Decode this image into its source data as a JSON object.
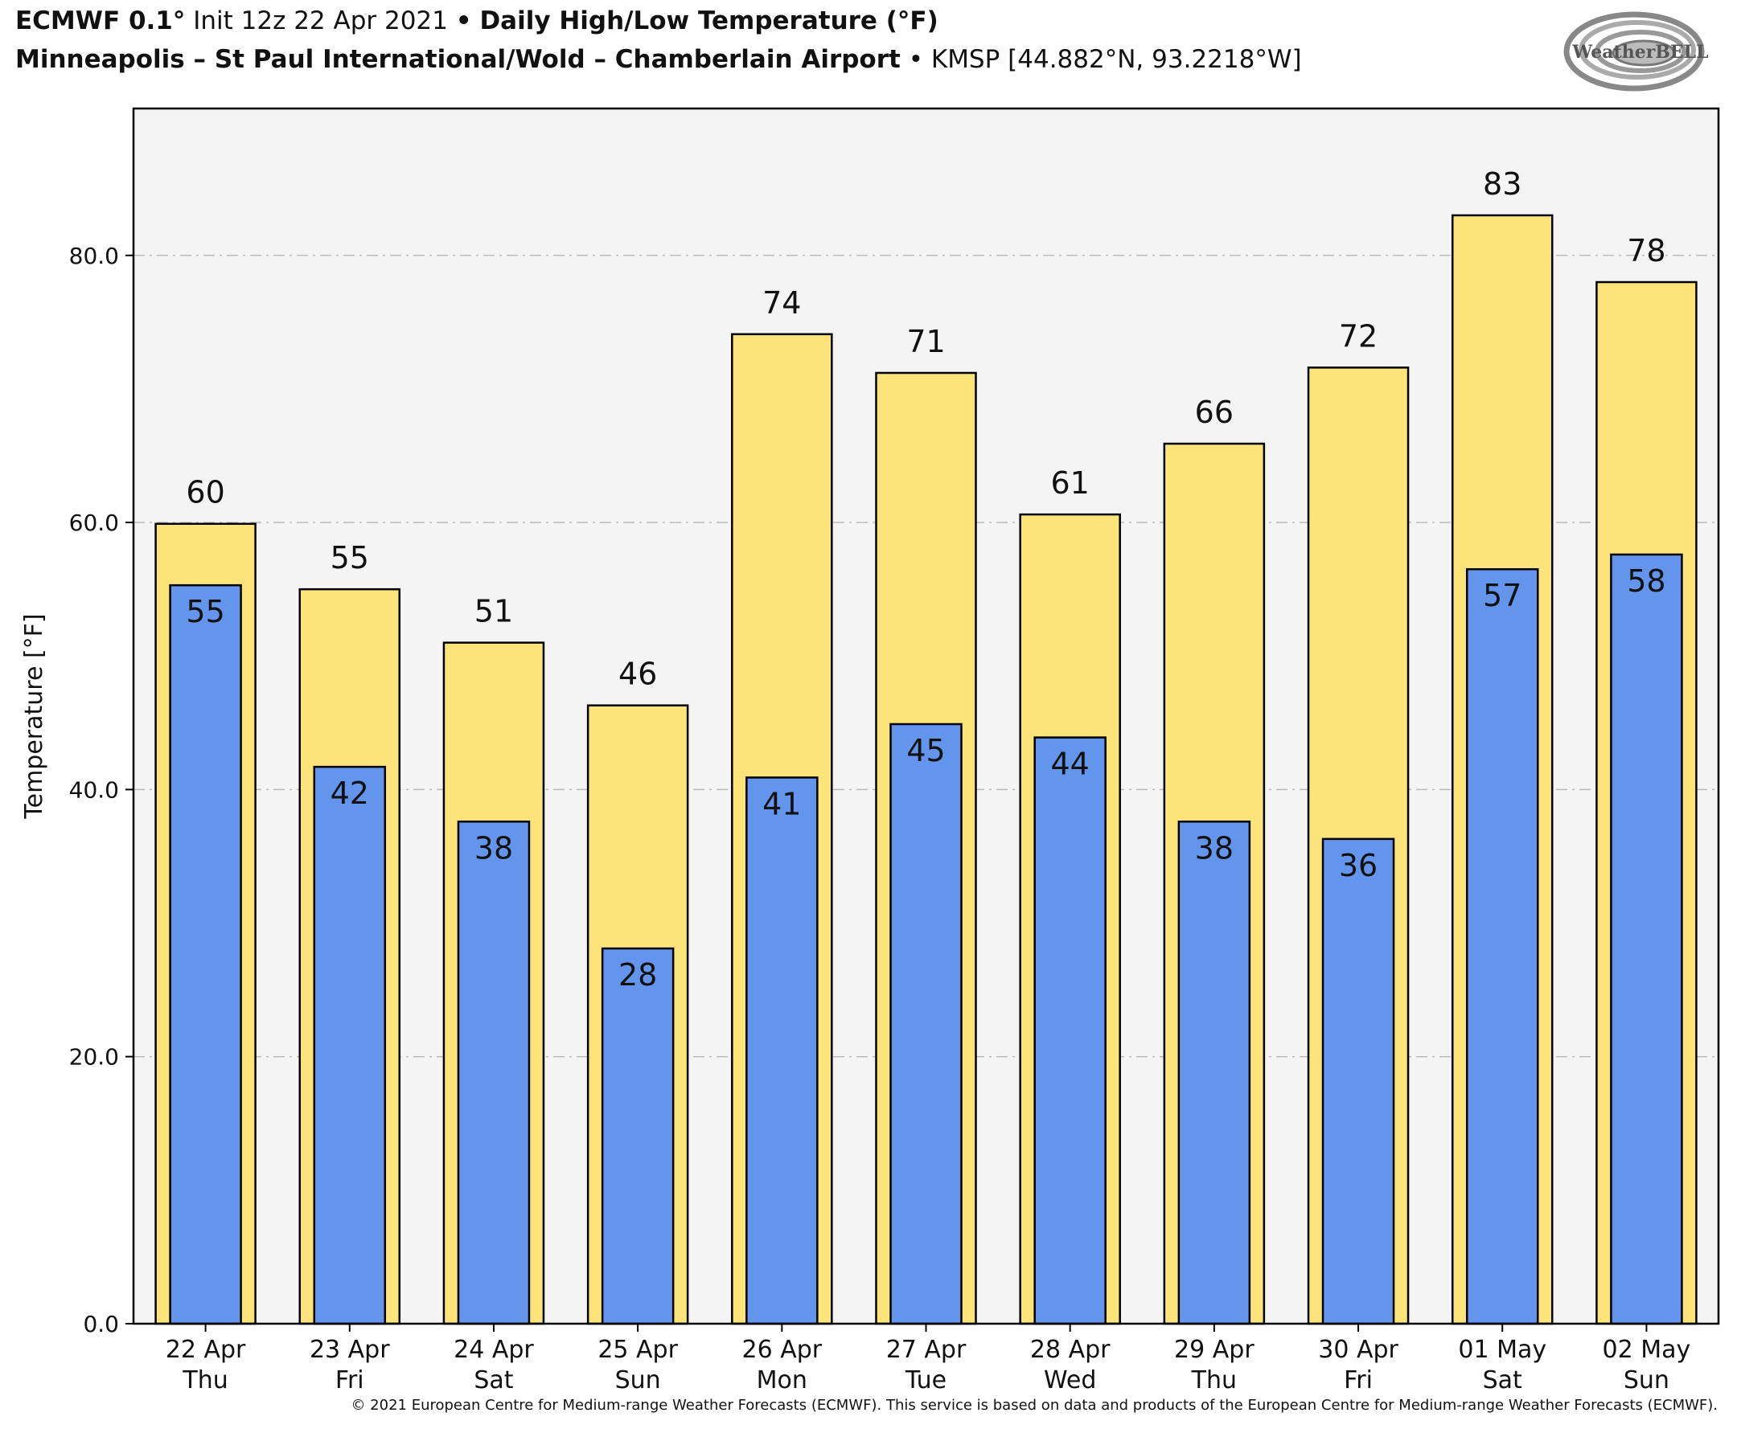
{
  "header": {
    "model": "ECMWF 0.1",
    "resolution_unit": "°",
    "init": "Init 12z 22 Apr 2021",
    "separator": "•",
    "product": "Daily High/Low Temperature (°F)",
    "location": "Minneapolis – St Paul International/Wold – Chamberlain Airport",
    "station": "KMSP [44.882°N, 93.2218°W]"
  },
  "logo": {
    "text": "WeatherBELL",
    "icon": "swirl-logo-icon"
  },
  "footer": {
    "copyright": "© 2021 European Centre for Medium-range Weather Forecasts (ECMWF). This service is based on data and products of the European Centre for Medium-range Weather Forecasts (ECMWF)."
  },
  "colors": {
    "high": "#fde47a",
    "low": "#6495ed",
    "plot_bg": "#f4f4f4",
    "grid": "#bbbbbb"
  },
  "chart_data": {
    "type": "bar",
    "ylabel": "Temperature [°F]",
    "ylim": [
      0,
      91
    ],
    "yticks": [
      "0.0",
      "20.0",
      "40.0",
      "60.0",
      "80.0"
    ],
    "ytick_values": [
      0,
      20,
      40,
      60,
      80
    ],
    "grid": true,
    "categories": [
      {
        "date": "22 Apr",
        "day": "Thu"
      },
      {
        "date": "23 Apr",
        "day": "Fri"
      },
      {
        "date": "24 Apr",
        "day": "Sat"
      },
      {
        "date": "25 Apr",
        "day": "Sun"
      },
      {
        "date": "26 Apr",
        "day": "Mon"
      },
      {
        "date": "27 Apr",
        "day": "Tue"
      },
      {
        "date": "28 Apr",
        "day": "Wed"
      },
      {
        "date": "29 Apr",
        "day": "Thu"
      },
      {
        "date": "30 Apr",
        "day": "Fri"
      },
      {
        "date": "01 May",
        "day": "Sat"
      },
      {
        "date": "02 May",
        "day": "Sun"
      }
    ],
    "series": [
      {
        "values": [
          59.9,
          55.0,
          51.0,
          46.3,
          74.1,
          71.2,
          60.6,
          65.9,
          71.6,
          83.0,
          78.0
        ],
        "labels": [
          "60",
          "55",
          "51",
          "46",
          "74",
          "71",
          "61",
          "66",
          "72",
          "83",
          "78"
        ]
      },
      {
        "values": [
          55.3,
          41.7,
          37.6,
          28.1,
          40.9,
          44.9,
          43.9,
          37.6,
          36.3,
          56.5,
          57.6
        ],
        "labels": [
          "55",
          "42",
          "38",
          "28",
          "41",
          "45",
          "44",
          "38",
          "36",
          "57",
          "58"
        ]
      }
    ]
  }
}
